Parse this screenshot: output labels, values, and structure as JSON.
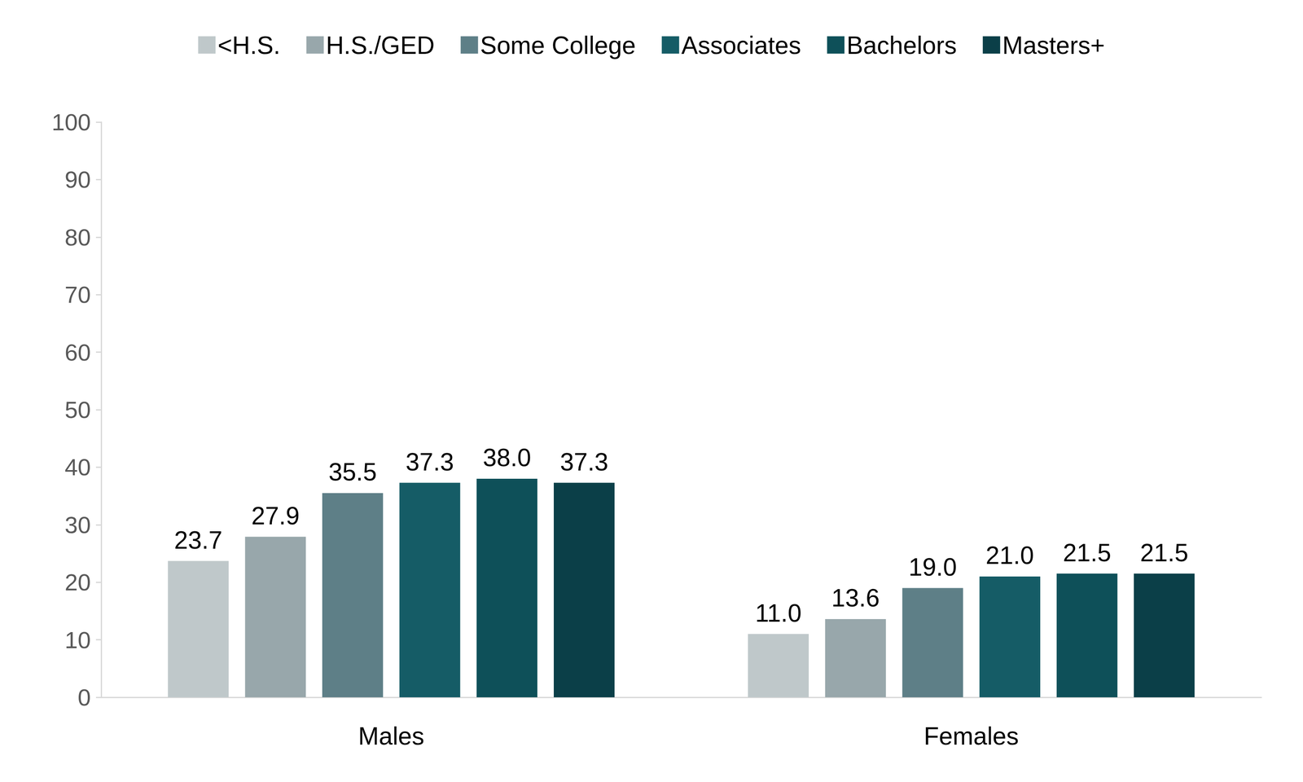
{
  "chart_data": {
    "type": "bar",
    "categories": [
      "Males",
      "Females"
    ],
    "series": [
      {
        "name": "<H.S.",
        "color": "#bfc8ca",
        "values": [
          23.7,
          11.0
        ],
        "value_labels": [
          "23.7",
          "11.0"
        ]
      },
      {
        "name": "H.S./GED",
        "color": "#98a7ab",
        "values": [
          27.9,
          13.6
        ],
        "value_labels": [
          "27.9",
          "13.6"
        ]
      },
      {
        "name": "Some College",
        "color": "#5e7f87",
        "values": [
          35.5,
          19.0
        ],
        "value_labels": [
          "35.5",
          "19.0"
        ]
      },
      {
        "name": "Associates",
        "color": "#155c66",
        "values": [
          37.3,
          21.0
        ],
        "value_labels": [
          "37.3",
          "21.0"
        ]
      },
      {
        "name": "Bachelors",
        "color": "#0e5059",
        "values": [
          38.0,
          21.5
        ],
        "value_labels": [
          "38.0",
          "21.5"
        ]
      },
      {
        "name": "Masters+",
        "color": "#0b3f48",
        "values": [
          37.3,
          21.5
        ],
        "value_labels": [
          "37.3",
          "21.5"
        ]
      }
    ],
    "ylim": [
      0,
      100
    ],
    "yticks": [
      0,
      10,
      20,
      30,
      40,
      50,
      60,
      70,
      80,
      90,
      100
    ],
    "grid": false,
    "legend": "top",
    "data_labels": true
  }
}
